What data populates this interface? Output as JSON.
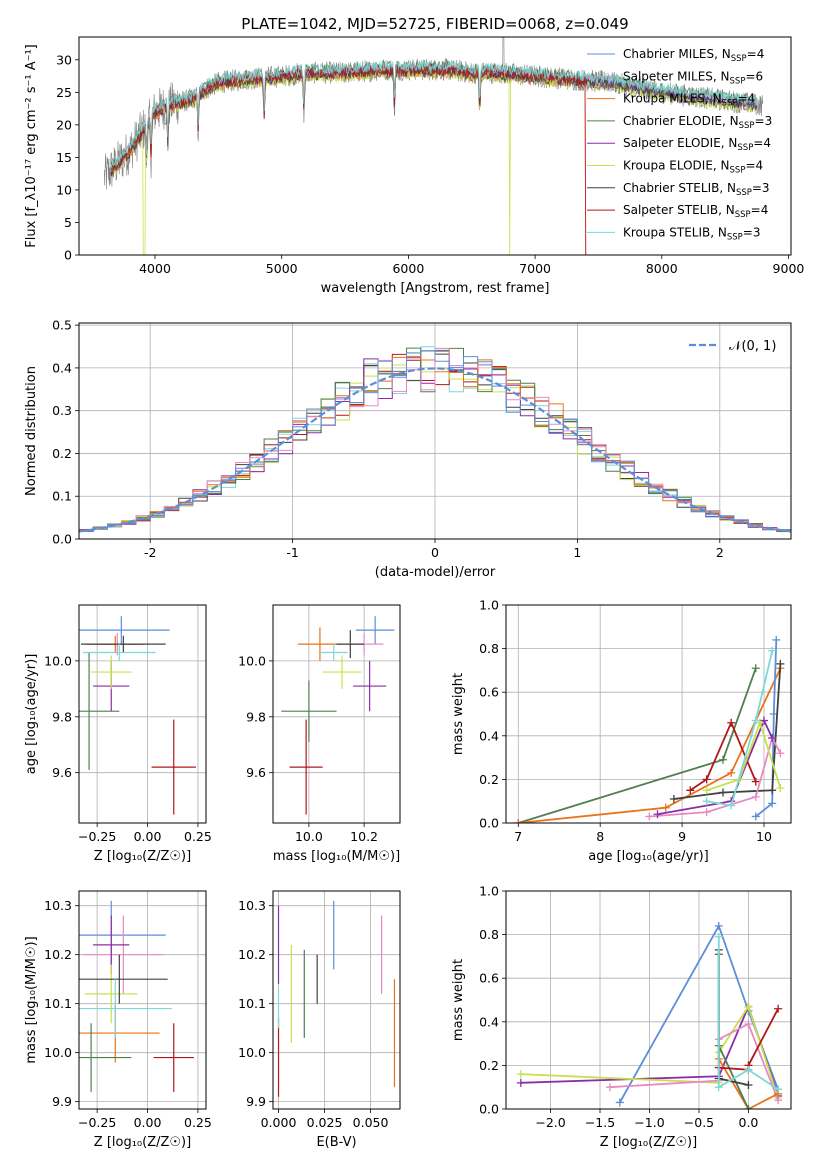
{
  "colors": {
    "series": [
      "#5b8fd8",
      "#e78ac3",
      "#e8731a",
      "#4f7f4f",
      "#8a2da8",
      "#c8e04a",
      "#404040",
      "#b01818",
      "#7ed8d8"
    ]
  },
  "chart_data": [
    {
      "id": "spectrum",
      "type": "line",
      "title": "PLATE=1042, MJD=52725, FIBERID=0068, z=0.049",
      "xlabel": "wavelength [Angstrom, rest frame]",
      "ylabel": "Flux [f_λ10⁻¹⁷ erg cm⁻² s⁻¹ A⁻¹]",
      "xlim": [
        3400,
        9020
      ],
      "ylim": [
        0,
        33.5
      ],
      "xticks": [
        4000,
        5000,
        6000,
        7000,
        8000,
        9000
      ],
      "yticks": [
        0,
        5,
        10,
        15,
        20,
        25,
        30
      ],
      "grid": false,
      "legend_position": "right",
      "legend": [
        {
          "label": "Chabrier MILES, N",
          "sub": "SSP",
          "tail": "=4",
          "color_index": 0
        },
        {
          "label": "Salpeter MILES, N",
          "sub": "SSP",
          "tail": "=6",
          "color_index": 1
        },
        {
          "label": "Kroupa MILES, N",
          "sub": "SSP",
          "tail": "=4",
          "color_index": 2
        },
        {
          "label": "Chabrier ELODIE, N",
          "sub": "SSP",
          "tail": "=3",
          "color_index": 3
        },
        {
          "label": "Salpeter ELODIE, N",
          "sub": "SSP",
          "tail": "=4",
          "color_index": 4
        },
        {
          "label": "Kroupa ELODIE, N",
          "sub": "SSP",
          "tail": "=4",
          "color_index": 5
        },
        {
          "label": "Chabrier STELIB, N",
          "sub": "SSP",
          "tail": "=3",
          "color_index": 6
        },
        {
          "label": "Salpeter STELIB, N",
          "sub": "SSP",
          "tail": "=4",
          "color_index": 7
        },
        {
          "label": "Kroupa STELIB, N",
          "sub": "SSP",
          "tail": "=3",
          "color_index": 8
        }
      ],
      "continuum": {
        "x": [
          3600,
          3700,
          3800,
          3900,
          4000,
          4100,
          4200,
          4300,
          4400,
          4500,
          4700,
          5000,
          5200,
          5500,
          5800,
          6000,
          6300,
          6500,
          6700,
          7000,
          7300,
          7600,
          8000,
          8400,
          8800
        ],
        "y": [
          12,
          14,
          16,
          19,
          22,
          23,
          23.5,
          24,
          25.5,
          26.5,
          27,
          27.5,
          28,
          28,
          28.5,
          28.5,
          28.5,
          28,
          28,
          27.5,
          27,
          26.5,
          25,
          24,
          23
        ]
      },
      "observed_range": [
        3600,
        8800
      ],
      "model_range": [
        3650,
        8750
      ]
    },
    {
      "id": "residuals",
      "type": "histogram",
      "xlabel": "(data-model)/error",
      "ylabel": "Normed distribution",
      "xlim": [
        -2.5,
        2.5
      ],
      "ylim": [
        0,
        0.505
      ],
      "xticks": [
        -2,
        -1,
        0,
        1,
        2
      ],
      "yticks": [
        0,
        0.1,
        0.2,
        0.3,
        0.4,
        0.5
      ],
      "ytick_labels": [
        "0.0",
        "0.1",
        "0.2",
        "0.3",
        "0.4",
        "0.5"
      ],
      "grid": true,
      "bin_width": 0.1,
      "legend": [
        {
          "label": "𝒩(0, 1)",
          "style": "dashed",
          "color_index": 0
        }
      ],
      "reference_curve": "normal(0,1)"
    },
    {
      "id": "z-age",
      "type": "errorbar",
      "xlabel": "Z [log₁₀(Z/Z☉)]",
      "ylabel": "age  [log₁₀(age/yr)]",
      "xlim": [
        -0.34,
        0.29
      ],
      "ylim": [
        9.42,
        10.2
      ],
      "xticks": [
        -0.25,
        0,
        0.25
      ],
      "xtick_labels": [
        "−0.25",
        "0.00",
        "0.25"
      ],
      "yticks": [
        9.6,
        9.8,
        10.0
      ],
      "ytick_labels": [
        "9.6",
        "9.8",
        "10.0"
      ],
      "grid": true,
      "points": [
        {
          "x": -0.13,
          "y": 10.11,
          "xerr": 0.24,
          "yerr": 0.05,
          "c": 0
        },
        {
          "x": -0.15,
          "y": 10.06,
          "xerr": 0.12,
          "yerr": 0.04,
          "c": 1
        },
        {
          "x": -0.16,
          "y": 10.06,
          "xerr": 0.14,
          "yerr": 0.03,
          "c": 2
        },
        {
          "x": -0.29,
          "y": 9.82,
          "xerr": 0.15,
          "yerr": 0.21,
          "c": 3
        },
        {
          "x": -0.18,
          "y": 9.91,
          "xerr": 0.09,
          "yerr": 0.09,
          "c": 4
        },
        {
          "x": -0.18,
          "y": 9.96,
          "xerr": 0.1,
          "yerr": 0.06,
          "c": 5
        },
        {
          "x": -0.12,
          "y": 10.06,
          "xerr": 0.21,
          "yerr": 0.03,
          "c": 6
        },
        {
          "x": 0.13,
          "y": 9.62,
          "xerr": 0.11,
          "yerr": 0.17,
          "c": 7
        },
        {
          "x": -0.14,
          "y": 10.03,
          "xerr": 0.18,
          "yerr": 0.03,
          "c": 8
        }
      ]
    },
    {
      "id": "mass-age",
      "type": "errorbar",
      "xlabel": "mass [log₁₀(M/M☉)]",
      "xlim": [
        9.87,
        10.33
      ],
      "ylim": [
        9.42,
        10.2
      ],
      "xticks": [
        10.0,
        10.2
      ],
      "xtick_labels": [
        "10.0",
        "10.2"
      ],
      "yticks": [
        9.6,
        9.8,
        10.0
      ],
      "ytick_labels": [
        "9.6",
        "9.8",
        "10.0"
      ],
      "grid": true,
      "points": [
        {
          "x": 10.24,
          "y": 10.11,
          "xerr": 0.07,
          "yerr": 0.05,
          "c": 0
        },
        {
          "x": 10.2,
          "y": 10.06,
          "xerr": 0.07,
          "yerr": 0.04,
          "c": 1
        },
        {
          "x": 10.04,
          "y": 10.06,
          "xerr": 0.08,
          "yerr": 0.06,
          "c": 2
        },
        {
          "x": 10.0,
          "y": 9.82,
          "xerr": 0.1,
          "yerr": 0.11,
          "c": 3
        },
        {
          "x": 10.22,
          "y": 9.91,
          "xerr": 0.06,
          "yerr": 0.09,
          "c": 4
        },
        {
          "x": 10.12,
          "y": 9.96,
          "xerr": 0.07,
          "yerr": 0.06,
          "c": 5
        },
        {
          "x": 10.15,
          "y": 10.06,
          "xerr": 0.05,
          "yerr": 0.05,
          "c": 6
        },
        {
          "x": 9.99,
          "y": 9.62,
          "xerr": 0.06,
          "yerr": 0.17,
          "c": 7
        },
        {
          "x": 10.09,
          "y": 10.03,
          "xerr": 0.05,
          "yerr": 0.03,
          "c": 8
        }
      ]
    },
    {
      "id": "weight-age",
      "type": "line",
      "xlabel": "age  [log₁₀(age/yr)]",
      "ylabel": "mass weight",
      "xlim": [
        6.85,
        10.33
      ],
      "ylim": [
        0,
        1
      ],
      "xticks": [
        7,
        8,
        9,
        10
      ],
      "yticks": [
        0,
        0.2,
        0.4,
        0.6,
        0.8,
        1.0
      ],
      "ytick_labels": [
        "0.0",
        "0.2",
        "0.4",
        "0.6",
        "0.8",
        "1.0"
      ],
      "grid": true,
      "series": [
        {
          "c": 3,
          "x": [
            7.0,
            9.5,
            9.9
          ],
          "y": [
            0.0,
            0.29,
            0.71
          ]
        },
        {
          "c": 2,
          "x": [
            7.0,
            8.8,
            9.6,
            10.2
          ],
          "y": [
            0.0,
            0.07,
            0.23,
            0.71
          ]
        },
        {
          "c": 0,
          "x": [
            9.9,
            10.1,
            10.12,
            10.15
          ],
          "y": [
            0.03,
            0.09,
            0.5,
            0.84
          ]
        },
        {
          "c": 7,
          "x": [
            9.1,
            9.3,
            9.6,
            9.9
          ],
          "y": [
            0.15,
            0.2,
            0.46,
            0.19
          ]
        },
        {
          "c": 6,
          "x": [
            8.9,
            9.5,
            10.1,
            10.2
          ],
          "y": [
            0.11,
            0.14,
            0.15,
            0.73
          ]
        },
        {
          "c": 1,
          "x": [
            8.6,
            9.3,
            9.9,
            10.1,
            10.2
          ],
          "y": [
            0.03,
            0.05,
            0.12,
            0.39,
            0.32
          ]
        },
        {
          "c": 4,
          "x": [
            8.7,
            9.6,
            10.0,
            10.1
          ],
          "y": [
            0.04,
            0.1,
            0.47,
            0.39
          ]
        },
        {
          "c": 5,
          "x": [
            9.3,
            9.7,
            9.95,
            10.2
          ],
          "y": [
            0.15,
            0.2,
            0.46,
            0.16
          ]
        },
        {
          "c": 8,
          "x": [
            9.3,
            9.6,
            9.9,
            10.1
          ],
          "y": [
            0.1,
            0.08,
            0.47,
            0.79
          ]
        }
      ]
    },
    {
      "id": "z-mass",
      "type": "errorbar",
      "xlabel": "Z [log₁₀(Z/Z☉)]",
      "ylabel": "mass [log₁₀(M/M☉)]",
      "xlim": [
        -0.34,
        0.29
      ],
      "ylim": [
        9.885,
        10.33
      ],
      "xticks": [
        -0.25,
        0,
        0.25
      ],
      "xtick_labels": [
        "−0.25",
        "0.00",
        "0.25"
      ],
      "yticks": [
        9.9,
        10.0,
        10.1,
        10.2,
        10.3
      ],
      "ytick_labels": [
        "9.9",
        "10.0",
        "10.1",
        "10.2",
        "10.3"
      ],
      "grid": true,
      "points": [
        {
          "x": -0.18,
          "y": 10.24,
          "xerr": 0.27,
          "yerr": 0.07,
          "c": 0
        },
        {
          "x": -0.12,
          "y": 10.2,
          "xerr": 0.2,
          "yerr": 0.08,
          "c": 1
        },
        {
          "x": -0.16,
          "y": 10.04,
          "xerr": 0.22,
          "yerr": 0.06,
          "c": 2
        },
        {
          "x": -0.28,
          "y": 9.99,
          "xerr": 0.2,
          "yerr": 0.07,
          "c": 3
        },
        {
          "x": -0.18,
          "y": 10.22,
          "xerr": 0.09,
          "yerr": 0.06,
          "c": 4
        },
        {
          "x": -0.18,
          "y": 10.12,
          "xerr": 0.13,
          "yerr": 0.06,
          "c": 5
        },
        {
          "x": -0.14,
          "y": 10.15,
          "xerr": 0.24,
          "yerr": 0.05,
          "c": 6
        },
        {
          "x": 0.13,
          "y": 9.99,
          "xerr": 0.1,
          "yerr": 0.07,
          "c": 7
        },
        {
          "x": -0.16,
          "y": 10.09,
          "xerr": 0.28,
          "yerr": 0.06,
          "c": 8
        }
      ]
    },
    {
      "id": "ebv-mass",
      "type": "errorbar",
      "xlabel": "E(B-V)",
      "xlim": [
        -0.003,
        0.066
      ],
      "ylim": [
        9.885,
        10.33
      ],
      "xticks": [
        0,
        0.025,
        0.05
      ],
      "xtick_labels": [
        "0.000",
        "0.025",
        "0.050"
      ],
      "yticks": [
        9.9,
        10.0,
        10.1,
        10.2,
        10.3
      ],
      "ytick_labels": [
        "9.9",
        "10.0",
        "10.1",
        "10.2",
        "10.3"
      ],
      "grid": true,
      "points": [
        {
          "x": 0.03,
          "y": 10.24,
          "xerr": 0,
          "yerr": 0.07,
          "c": 0
        },
        {
          "x": 0.056,
          "y": 10.2,
          "xerr": 0,
          "yerr": 0.08,
          "c": 1
        },
        {
          "x": 0.063,
          "y": 10.04,
          "xerr": 0,
          "yerr": 0.11,
          "c": 2
        },
        {
          "x": 0.014,
          "y": 10.12,
          "xerr": 0,
          "yerr": 0.09,
          "c": 3
        },
        {
          "x": 0.0,
          "y": 10.22,
          "xerr": 0,
          "yerr": 0.08,
          "c": 4
        },
        {
          "x": 0.007,
          "y": 10.12,
          "xerr": 0,
          "yerr": 0.1,
          "c": 5
        },
        {
          "x": 0.021,
          "y": 10.15,
          "xerr": 0,
          "yerr": 0.05,
          "c": 6
        },
        {
          "x": 0.0,
          "y": 9.99,
          "xerr": 0,
          "yerr": 0.08,
          "c": 7
        },
        {
          "x": 0.0,
          "y": 10.09,
          "xerr": 0,
          "yerr": 0.04,
          "c": 8
        }
      ]
    },
    {
      "id": "weight-z",
      "type": "line",
      "xlabel": "Z [log₁₀(Z/Z☉)]",
      "ylabel": "mass weight",
      "xlim": [
        -2.45,
        0.43
      ],
      "ylim": [
        0,
        1
      ],
      "xticks": [
        -2,
        -1.5,
        -1,
        -0.5,
        0
      ],
      "xtick_labels": [
        "−2.0",
        "−1.5",
        "−1.0",
        "−0.5",
        "0.0"
      ],
      "yticks": [
        0,
        0.2,
        0.4,
        0.6,
        0.8,
        1.0
      ],
      "ytick_labels": [
        "0.0",
        "0.2",
        "0.4",
        "0.6",
        "0.8",
        "1.0"
      ],
      "grid": true,
      "series": [
        {
          "c": 0,
          "x": [
            -1.3,
            -0.3,
            0.0,
            0.3
          ],
          "y": [
            0.03,
            0.84,
            0.45,
            0.09
          ]
        },
        {
          "c": 4,
          "x": [
            -2.3,
            -0.3,
            0.0,
            0.3
          ],
          "y": [
            0.12,
            0.15,
            0.47,
            0.06
          ]
        },
        {
          "c": 5,
          "x": [
            -2.3,
            -0.3,
            -0.3,
            0.0,
            0.3
          ],
          "y": [
            0.16,
            0.12,
            0.26,
            0.47,
            0.05
          ]
        },
        {
          "c": 1,
          "x": [
            -1.4,
            -0.3,
            -0.3,
            0.0,
            0.3
          ],
          "y": [
            0.1,
            0.13,
            0.32,
            0.39,
            0.04
          ]
        },
        {
          "c": 2,
          "x": [
            -0.3,
            -0.3,
            0.0,
            0.3
          ],
          "y": [
            0.71,
            0.23,
            0.0,
            0.07
          ]
        },
        {
          "c": 3,
          "x": [
            -0.3,
            -0.3,
            0.0
          ],
          "y": [
            0.71,
            0.29,
            0.0
          ]
        },
        {
          "c": 6,
          "x": [
            -0.3,
            -0.3,
            0.0
          ],
          "y": [
            0.73,
            0.14,
            0.11
          ]
        },
        {
          "c": 7,
          "x": [
            -0.3,
            0.0,
            0.0,
            0.3
          ],
          "y": [
            0.19,
            0.18,
            0.2,
            0.46
          ]
        },
        {
          "c": 8,
          "x": [
            -0.3,
            -0.3,
            0.0,
            0.3
          ],
          "y": [
            0.79,
            0.1,
            0.18,
            0.09
          ]
        }
      ]
    }
  ]
}
